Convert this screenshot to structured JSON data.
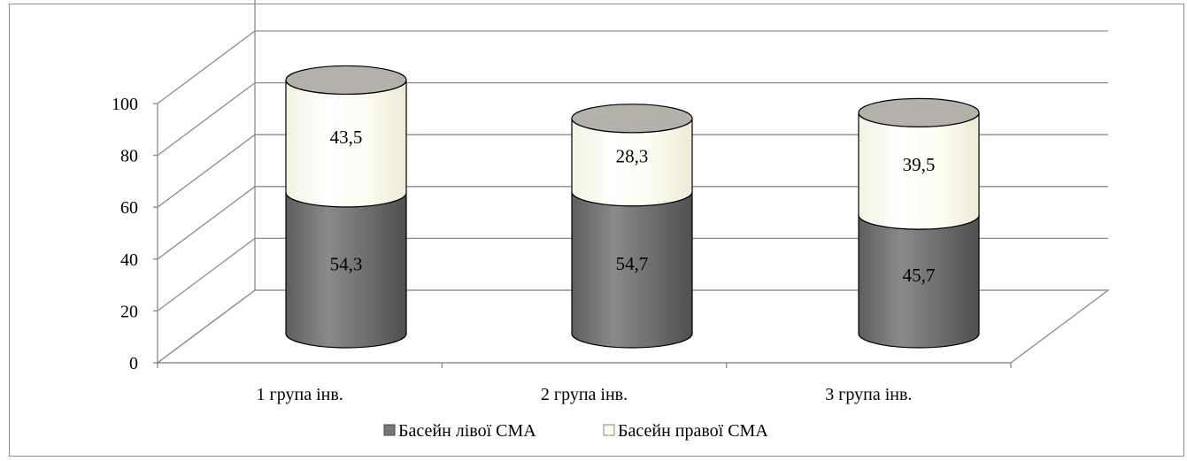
{
  "chart_data": {
    "type": "bar",
    "style": "3d-stacked-cylinder",
    "title": "",
    "xlabel": "",
    "ylabel": "",
    "categories": [
      "1 група інв.",
      "2 група інв.",
      "3 група інв."
    ],
    "series": [
      {
        "name": "Басейн лівої СМА",
        "values": [
          54.3,
          54.7,
          45.7
        ],
        "color": "#777777"
      },
      {
        "name": "Басейн правої СМА",
        "values": [
          43.5,
          28.3,
          39.5
        ],
        "color": "#fdfdf0"
      }
    ],
    "data_labels": [
      [
        "54,3",
        "54,7",
        "45,7"
      ],
      [
        "43,5",
        "28,3",
        "39,5"
      ]
    ],
    "ylim": [
      0,
      100
    ],
    "yticks": [
      0,
      20,
      40,
      60,
      80,
      100
    ],
    "grid": true,
    "legend_position": "bottom",
    "top_cap_color": "#b4b1ab"
  }
}
